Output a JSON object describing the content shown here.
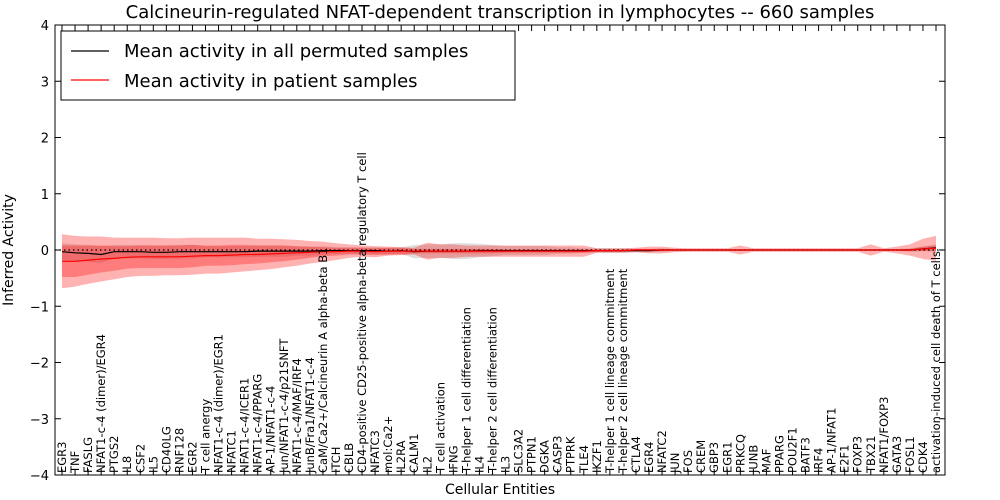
{
  "chart_data": {
    "type": "line",
    "title": "Calcineurin-regulated NFAT-dependent transcription in lymphocytes -- 660 samples",
    "xlabel": "Cellular Entities",
    "ylabel": "Inferred Activity",
    "ylim": [
      -4,
      4
    ],
    "yticks": [
      "4",
      "3",
      "2",
      "1",
      "0",
      "−1",
      "−2",
      "−3",
      "−4"
    ],
    "yticks_values": [
      4,
      3,
      2,
      1,
      0,
      -1,
      -2,
      -3,
      -4
    ],
    "grid": false,
    "legend_placement": "top-left",
    "categories": [
      "EGR3",
      "TNF",
      "FASLG",
      "NFAT1-c-4 (dimer)/EGR4",
      "PTGS2",
      "IL8",
      "CSF2",
      "IL5",
      "CD40LG",
      "RNF128",
      "EGR2",
      "T cell anergy",
      "NFAT1-c-4 (dimer)/EGR1",
      "NFATC1",
      "NFAT1-c-4/ICER1",
      "NFAT1-c-4/PPARG",
      "AP-1/NFAT1-c-4",
      "Jun/NFAT1-c-4/p21SNFT",
      "NFAT1-c-4/MAF/IRF4",
      "JunB/Fra1/NFAT1-c-4",
      "CaM/Ca2+/Calcineurin A alpha-beta B1",
      "ITCH",
      "CBLB",
      "CD4-positive CD25-positive alpha-beta regulatory T cell",
      "NFATC3",
      "mol:Ca2+",
      "IL2RA",
      "CALM1",
      "IL2",
      "T cell activation",
      "IFNG",
      "T-helper 1 cell differentiation",
      "IL4",
      "T-helper 2 cell differentiation",
      "IL3",
      "SLC3A2",
      "PTPN1",
      "DGKA",
      "CASP3",
      "PTPRK",
      "TLE4",
      "IKZF1",
      "T-helper 1 cell lineage commitment",
      "T-helper 2 cell lineage commitment",
      "CTLA4",
      "EGR4",
      "NFATC2",
      "JUN",
      "FOS",
      "CREM",
      "GBP3",
      "EGR1",
      "PRKCQ",
      "JUNB",
      "MAF",
      "PPARG",
      "POU2F1",
      "BATF3",
      "IRF4",
      "AP-1/NFAT1",
      "E2F1",
      "FOXP3",
      "TBX21",
      "NFAT1/FOXP3",
      "GATA3",
      "FOSL1",
      "CDK4",
      "activation-induced cell death of T cells"
    ],
    "series": [
      {
        "name": "Mean activity in all permuted samples",
        "color": "#000000",
        "values": [
          -0.03,
          -0.05,
          -0.06,
          -0.08,
          -0.03,
          -0.03,
          -0.03,
          -0.04,
          -0.04,
          -0.03,
          -0.03,
          -0.03,
          -0.03,
          -0.03,
          -0.03,
          -0.02,
          -0.02,
          -0.02,
          -0.02,
          -0.02,
          -0.01,
          -0.01,
          -0.01,
          -0.01,
          -0.01,
          -0.02,
          -0.01,
          -0.03,
          -0.02,
          -0.02,
          -0.02,
          -0.02,
          -0.01,
          -0.01,
          -0.01,
          -0.01,
          -0.01,
          -0.01,
          -0.01,
          -0.01,
          -0.01,
          -0.01,
          -0.01,
          -0.01,
          -0.01,
          -0.01,
          0.0,
          0.0,
          0.0,
          0.0,
          0.0,
          0.0,
          0.0,
          0.0,
          0.0,
          0.0,
          0.0,
          0.0,
          0.0,
          0.0,
          0.0,
          0.0,
          0.0,
          0.0,
          0.0,
          0.0,
          0.02,
          0.04
        ],
        "band": [
          0.15,
          0.15,
          0.15,
          0.15,
          0.12,
          0.12,
          0.12,
          0.12,
          0.12,
          0.12,
          0.12,
          0.1,
          0.1,
          0.1,
          0.1,
          0.1,
          0.1,
          0.1,
          0.08,
          0.08,
          0.08,
          0.06,
          0.06,
          0.06,
          0.06,
          0.06,
          0.06,
          0.12,
          0.12,
          0.12,
          0.14,
          0.14,
          0.12,
          0.1,
          0.08,
          0.08,
          0.08,
          0.08,
          0.06,
          0.06,
          0.04,
          0.04,
          0.04,
          0.04,
          0.03,
          0.03,
          0.03,
          0.02,
          0.02,
          0.02,
          0.02,
          0.02,
          0.02,
          0.02,
          0.02,
          0.02,
          0.02,
          0.02,
          0.02,
          0.02,
          0.02,
          0.02,
          0.02,
          0.02,
          0.02,
          0.03,
          0.04,
          0.06
        ]
      },
      {
        "name": "Mean activity in patient samples",
        "color": "#ff0000",
        "values": [
          -0.2,
          -0.2,
          -0.18,
          -0.16,
          -0.15,
          -0.13,
          -0.12,
          -0.12,
          -0.12,
          -0.12,
          -0.11,
          -0.1,
          -0.1,
          -0.09,
          -0.08,
          -0.08,
          -0.07,
          -0.06,
          -0.05,
          -0.04,
          -0.03,
          -0.03,
          -0.02,
          -0.02,
          -0.03,
          -0.02,
          -0.02,
          -0.02,
          -0.02,
          -0.02,
          -0.02,
          -0.02,
          -0.02,
          -0.02,
          -0.02,
          -0.02,
          -0.02,
          -0.02,
          -0.02,
          -0.02,
          -0.02,
          -0.01,
          -0.01,
          -0.01,
          0.0,
          0.0,
          0.0,
          0.0,
          0.0,
          0.0,
          0.0,
          0.0,
          0.0,
          0.0,
          0.0,
          0.0,
          0.0,
          0.0,
          0.0,
          0.0,
          0.0,
          0.0,
          0.0,
          0.0,
          0.0,
          0.0,
          0.02,
          0.03
        ],
        "inner_band": [
          0.28,
          0.28,
          0.26,
          0.24,
          0.22,
          0.2,
          0.2,
          0.2,
          0.2,
          0.2,
          0.2,
          0.18,
          0.18,
          0.18,
          0.17,
          0.16,
          0.15,
          0.14,
          0.12,
          0.1,
          0.08,
          0.07,
          0.06,
          0.06,
          0.06,
          0.06,
          0.06,
          0.04,
          0.04,
          0.04,
          0.04,
          0.04,
          0.04,
          0.04,
          0.03,
          0.03,
          0.03,
          0.03,
          0.03,
          0.03,
          0.03,
          0.02,
          0.02,
          0.02,
          0.02,
          0.02,
          0.02,
          0.01,
          0.01,
          0.01,
          0.01,
          0.01,
          0.01,
          0.01,
          0.01,
          0.01,
          0.01,
          0.01,
          0.01,
          0.01,
          0.01,
          0.01,
          0.01,
          0.01,
          0.01,
          0.02,
          0.04,
          0.05
        ],
        "outer_band": [
          0.48,
          0.45,
          0.42,
          0.4,
          0.37,
          0.35,
          0.34,
          0.34,
          0.33,
          0.33,
          0.33,
          0.32,
          0.32,
          0.31,
          0.3,
          0.28,
          0.27,
          0.25,
          0.23,
          0.2,
          0.18,
          0.15,
          0.12,
          0.1,
          0.1,
          0.08,
          0.07,
          0.06,
          0.15,
          0.12,
          0.12,
          0.1,
          0.1,
          0.1,
          0.1,
          0.1,
          0.1,
          0.1,
          0.1,
          0.1,
          0.1,
          0.04,
          0.04,
          0.04,
          0.04,
          0.06,
          0.06,
          0.04,
          0.03,
          0.03,
          0.03,
          0.03,
          0.08,
          0.03,
          0.03,
          0.03,
          0.03,
          0.03,
          0.03,
          0.03,
          0.03,
          0.03,
          0.1,
          0.03,
          0.06,
          0.1,
          0.18,
          0.22
        ]
      }
    ],
    "reference_line": {
      "y": 0,
      "style": "dotted"
    }
  }
}
